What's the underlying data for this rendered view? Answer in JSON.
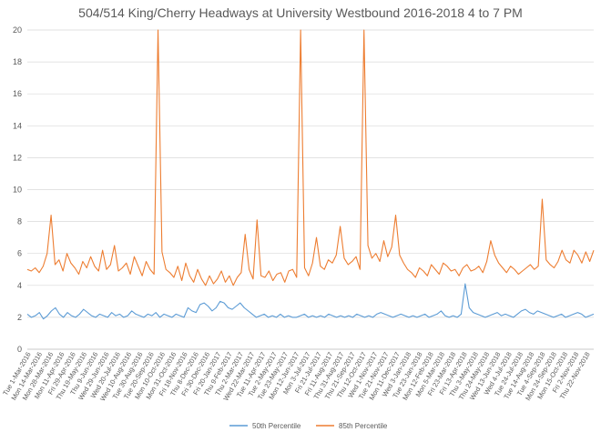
{
  "chart_data": {
    "type": "line",
    "title": "504/514 King/Cherry Headways at University Westbound 2016-2018 4 to 7 PM",
    "xlabel": "",
    "ylabel": "",
    "ylim": [
      0,
      20
    ],
    "y_ticks": [
      0,
      2,
      4,
      6,
      8,
      10,
      12,
      14,
      16,
      18,
      20
    ],
    "grid": true,
    "legend_position": "bottom",
    "x_tick_labels": [
      "Tue 1-Mar-2016",
      "Mon 14-Mar-2016",
      "Mon 28-Mar-2016",
      "Mon 11-Apr-2016",
      "Fri 29-Apr-2016",
      "Thu 19-May-2016",
      "Thu 9-Jun-2016",
      "Wed 29-Jun-2016",
      "Wed 20-Jul-2016",
      "Wed 10-Aug-2016",
      "Tue 30-Aug-2016",
      "Tue 20-Sep-2016",
      "Mon 10-Oct-2016",
      "Mon 31-Oct-2016",
      "Fri 18-Nov-2016",
      "Thu 8-Dec-2016",
      "Fri 30-Dec-2016",
      "Fri 20-Jan-2017",
      "Thu 9-Feb-2017",
      "Thu 2-Mar-2017",
      "Wed 22-Mar-2017",
      "Tue 11-Apr-2017",
      "Tue 2-May-2017",
      "Tue 23-May-2017",
      "Mon 12-Jun-2017",
      "Mon 3-Jul-2017",
      "Fri 21-Jul-2017",
      "Fri 11-Aug-2017",
      "Thu 31-Aug-2017",
      "Thu 21-Sep-2017",
      "Thu 12-Oct-2017",
      "Wed 1-Nov-2017",
      "Tue 21-Nov-2017",
      "Mon 11-Dec-2017",
      "Wed 3-Jan-2018",
      "Tue 23-Jan-2018",
      "Mon 12-Feb-2018",
      "Mon 5-Mar-2018",
      "Fri 23-Mar-2018",
      "Fri 13-Apr-2018",
      "Thu 3-May-2018",
      "Thu 24-May-2018",
      "Wed 13-Jun-2018",
      "Wed 4-Jul-2018",
      "Tue 24-Jul-2018",
      "Tue 14-Aug-2018",
      "Tue 4-Sep-2018",
      "Mon 24-Sep-2018",
      "Mon 15-Oct-2018",
      "Fri 2-Nov-2018",
      "Thu 22-Nov-2018"
    ],
    "series": [
      {
        "name": "50th Percentile",
        "color": "#5b9bd5",
        "values": [
          2.2,
          2.0,
          2.1,
          2.3,
          1.9,
          2.1,
          2.4,
          2.6,
          2.2,
          2.0,
          2.3,
          2.1,
          2.0,
          2.2,
          2.5,
          2.3,
          2.1,
          2.0,
          2.2,
          2.1,
          2.0,
          2.3,
          2.1,
          2.2,
          2.0,
          2.1,
          2.4,
          2.2,
          2.1,
          2.0,
          2.2,
          2.1,
          2.3,
          2.0,
          2.2,
          2.1,
          2.0,
          2.2,
          2.1,
          2.0,
          2.6,
          2.4,
          2.3,
          2.8,
          2.9,
          2.7,
          2.4,
          2.6,
          3.0,
          2.9,
          2.6,
          2.5,
          2.7,
          2.9,
          2.6,
          2.4,
          2.2,
          2.0,
          2.1,
          2.2,
          2.0,
          2.1,
          2.0,
          2.2,
          2.0,
          2.1,
          2.0,
          2.0,
          2.1,
          2.2,
          2.0,
          2.1,
          2.0,
          2.1,
          2.0,
          2.2,
          2.1,
          2.0,
          2.1,
          2.0,
          2.1,
          2.0,
          2.2,
          2.1,
          2.0,
          2.1,
          2.0,
          2.2,
          2.3,
          2.2,
          2.1,
          2.0,
          2.1,
          2.2,
          2.1,
          2.0,
          2.1,
          2.0,
          2.1,
          2.2,
          2.0,
          2.1,
          2.2,
          2.4,
          2.1,
          2.0,
          2.1,
          2.0,
          2.2,
          4.1,
          2.6,
          2.3,
          2.2,
          2.1,
          2.0,
          2.1,
          2.2,
          2.3,
          2.1,
          2.2,
          2.1,
          2.0,
          2.2,
          2.4,
          2.5,
          2.3,
          2.2,
          2.4,
          2.3,
          2.2,
          2.1,
          2.0,
          2.1,
          2.2,
          2.0,
          2.1,
          2.2,
          2.3,
          2.2,
          2.0,
          2.1,
          2.2
        ]
      },
      {
        "name": "85th Percentile",
        "color": "#ed7d31",
        "values": [
          5.0,
          4.9,
          5.1,
          4.8,
          5.2,
          6.0,
          8.4,
          5.3,
          5.6,
          4.9,
          6.0,
          5.4,
          5.1,
          4.7,
          5.5,
          5.1,
          5.8,
          5.2,
          4.9,
          6.2,
          5.0,
          5.3,
          6.5,
          4.9,
          5.1,
          5.4,
          4.7,
          5.8,
          5.2,
          4.6,
          5.5,
          5.0,
          4.7,
          20.0,
          6.1,
          5.0,
          4.8,
          4.5,
          5.2,
          4.3,
          5.4,
          4.6,
          4.2,
          5.0,
          4.4,
          4.0,
          4.6,
          4.1,
          4.4,
          4.9,
          4.2,
          4.6,
          4.0,
          4.5,
          4.8,
          7.2,
          5.0,
          4.4,
          8.1,
          4.6,
          4.5,
          4.9,
          4.3,
          4.7,
          4.8,
          4.2,
          4.9,
          5.0,
          4.5,
          20.0,
          5.1,
          4.6,
          5.4,
          7.0,
          5.2,
          5.0,
          5.6,
          5.4,
          5.9,
          7.7,
          5.7,
          5.3,
          5.5,
          5.8,
          5.0,
          20.0,
          6.5,
          5.7,
          6.0,
          5.5,
          6.8,
          5.8,
          6.4,
          8.4,
          5.9,
          5.4,
          5.0,
          4.8,
          4.5,
          5.1,
          4.9,
          4.6,
          5.3,
          5.0,
          4.7,
          5.4,
          5.2,
          4.9,
          5.0,
          4.6,
          5.1,
          5.3,
          4.9,
          5.0,
          5.2,
          4.8,
          5.5,
          6.8,
          5.9,
          5.4,
          5.1,
          4.8,
          5.2,
          5.0,
          4.7,
          4.9,
          5.1,
          5.3,
          5.0,
          5.2,
          9.4,
          5.6,
          5.3,
          5.1,
          5.5,
          6.2,
          5.6,
          5.4,
          6.2,
          5.9,
          5.4,
          6.1,
          5.5,
          6.2
        ]
      }
    ]
  }
}
